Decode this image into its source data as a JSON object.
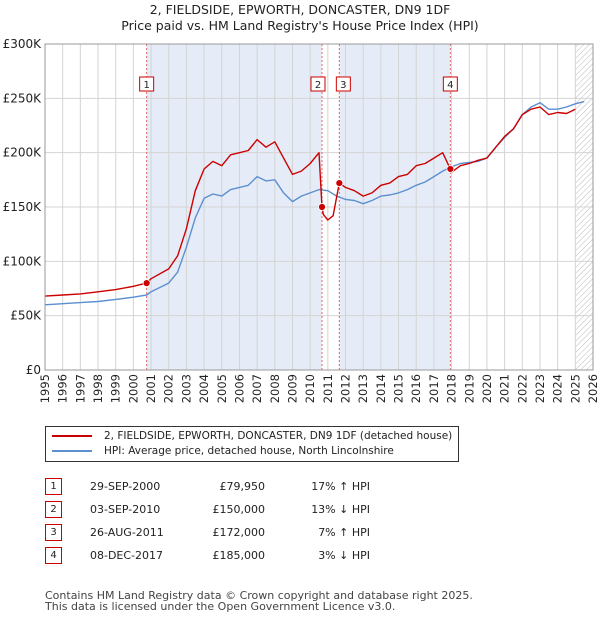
{
  "title": {
    "line1": "2, FIELDSIDE, EPWORTH, DONCASTER, DN9 1DF",
    "line2": "Price paid vs. HM Land Registry's House Price Index (HPI)"
  },
  "colors": {
    "property": "#cc0000",
    "hpi": "#5b8fd0",
    "shade": "#e6ecf7",
    "grid": "#d4d4d4"
  },
  "chart_data": {
    "type": "line",
    "xlabel": "",
    "ylabel": "",
    "xlim": [
      1995,
      2026
    ],
    "ylim": [
      0,
      300000
    ],
    "yticks": [
      0,
      50000,
      100000,
      150000,
      200000,
      250000,
      300000
    ],
    "ytick_labels": [
      "£0",
      "£50K",
      "£100K",
      "£150K",
      "£200K",
      "£250K",
      "£300K"
    ],
    "xticks": [
      1995,
      1996,
      1997,
      1998,
      1999,
      2000,
      2001,
      2002,
      2003,
      2004,
      2005,
      2006,
      2007,
      2008,
      2009,
      2010,
      2011,
      2012,
      2013,
      2014,
      2015,
      2016,
      2017,
      2018,
      2019,
      2020,
      2021,
      2022,
      2023,
      2024,
      2025,
      2026
    ],
    "shaded_ranges": [
      [
        2000.75,
        2010.67
      ],
      [
        2011.65,
        2017.93
      ]
    ],
    "forecast_from": 2025.0,
    "series": [
      {
        "name": "2, FIELDSIDE, EPWORTH, DONCASTER, DN9 1DF (detached house)",
        "x": [
          1995,
          1996,
          1997,
          1998,
          1999,
          2000,
          2000.75,
          2001,
          2002,
          2002.5,
          2003,
          2003.5,
          2004,
          2004.5,
          2005,
          2005.5,
          2006,
          2006.5,
          2007,
          2007.5,
          2008,
          2008.5,
          2009,
          2009.5,
          2010,
          2010.5,
          2010.67,
          2010.75,
          2011,
          2011.3,
          2011.65,
          2012,
          2012.5,
          2013,
          2013.5,
          2014,
          2014.5,
          2015,
          2015.5,
          2016,
          2016.5,
          2017,
          2017.5,
          2017.93,
          2018,
          2018.5,
          2019,
          2019.5,
          2020,
          2020.5,
          2021,
          2021.5,
          2022,
          2022.5,
          2023,
          2023.5,
          2024,
          2024.5,
          2025.0
        ],
        "values": [
          68000,
          69000,
          70000,
          72000,
          74000,
          77000,
          79950,
          84000,
          93000,
          105000,
          130000,
          165000,
          185000,
          192000,
          188000,
          198000,
          200000,
          202000,
          212000,
          205000,
          210000,
          195000,
          180000,
          183000,
          190000,
          200000,
          150000,
          143000,
          138000,
          142000,
          172000,
          168000,
          165000,
          160000,
          163000,
          170000,
          172000,
          178000,
          180000,
          188000,
          190000,
          195000,
          200000,
          185000,
          182000,
          188000,
          190000,
          193000,
          195000,
          205000,
          215000,
          222000,
          235000,
          240000,
          242000,
          235000,
          237000,
          236000,
          240000
        ]
      },
      {
        "name": "HPI: Average price, detached house, North Lincolnshire",
        "x": [
          1995,
          1996,
          1997,
          1998,
          1999,
          2000,
          2000.75,
          2001,
          2002,
          2002.5,
          2003,
          2003.5,
          2004,
          2004.5,
          2005,
          2005.5,
          2006,
          2006.5,
          2007,
          2007.5,
          2008,
          2008.5,
          2009,
          2009.5,
          2010,
          2010.5,
          2011,
          2011.5,
          2012,
          2012.5,
          2013,
          2013.5,
          2014,
          2014.5,
          2015,
          2015.5,
          2016,
          2016.5,
          2017,
          2017.5,
          2018,
          2018.5,
          2019,
          2019.5,
          2020,
          2020.5,
          2021,
          2021.5,
          2022,
          2022.5,
          2023,
          2023.5,
          2024,
          2024.5,
          2025,
          2025.5
        ],
        "values": [
          60000,
          61000,
          62000,
          63000,
          65000,
          67000,
          69000,
          72000,
          80000,
          90000,
          113000,
          140000,
          158000,
          162000,
          160000,
          166000,
          168000,
          170000,
          178000,
          174000,
          175000,
          163000,
          155000,
          160000,
          163000,
          166000,
          165000,
          160000,
          157000,
          156000,
          153000,
          156000,
          160000,
          161000,
          163000,
          166000,
          170000,
          173000,
          178000,
          183000,
          187000,
          190000,
          191000,
          192000,
          195000,
          205000,
          214000,
          222000,
          235000,
          242000,
          246000,
          240000,
          240000,
          242000,
          245000,
          247000
        ]
      }
    ],
    "sales": [
      {
        "label": "1",
        "x": 2000.75,
        "value": 79950
      },
      {
        "label": "2",
        "x": 2010.67,
        "value": 150000
      },
      {
        "label": "3",
        "x": 2011.65,
        "value": 172000
      },
      {
        "label": "4",
        "x": 2017.93,
        "value": 185000
      }
    ]
  },
  "legend": {
    "property": "2, FIELDSIDE, EPWORTH, DONCASTER, DN9 1DF (detached house)",
    "hpi": "HPI: Average price, detached house, North Lincolnshire"
  },
  "transactions": [
    {
      "num": "1",
      "date": "29-SEP-2000",
      "price": "£79,950",
      "hpi": "17% ↑ HPI"
    },
    {
      "num": "2",
      "date": "03-SEP-2010",
      "price": "£150,000",
      "hpi": "13% ↓ HPI"
    },
    {
      "num": "3",
      "date": "26-AUG-2011",
      "price": "£172,000",
      "hpi": "7% ↑ HPI"
    },
    {
      "num": "4",
      "date": "08-DEC-2017",
      "price": "£185,000",
      "hpi": "3% ↓ HPI"
    }
  ],
  "footer": {
    "line1": "Contains HM Land Registry data © Crown copyright and database right 2025.",
    "line2": "This data is licensed under the Open Government Licence v3.0."
  }
}
